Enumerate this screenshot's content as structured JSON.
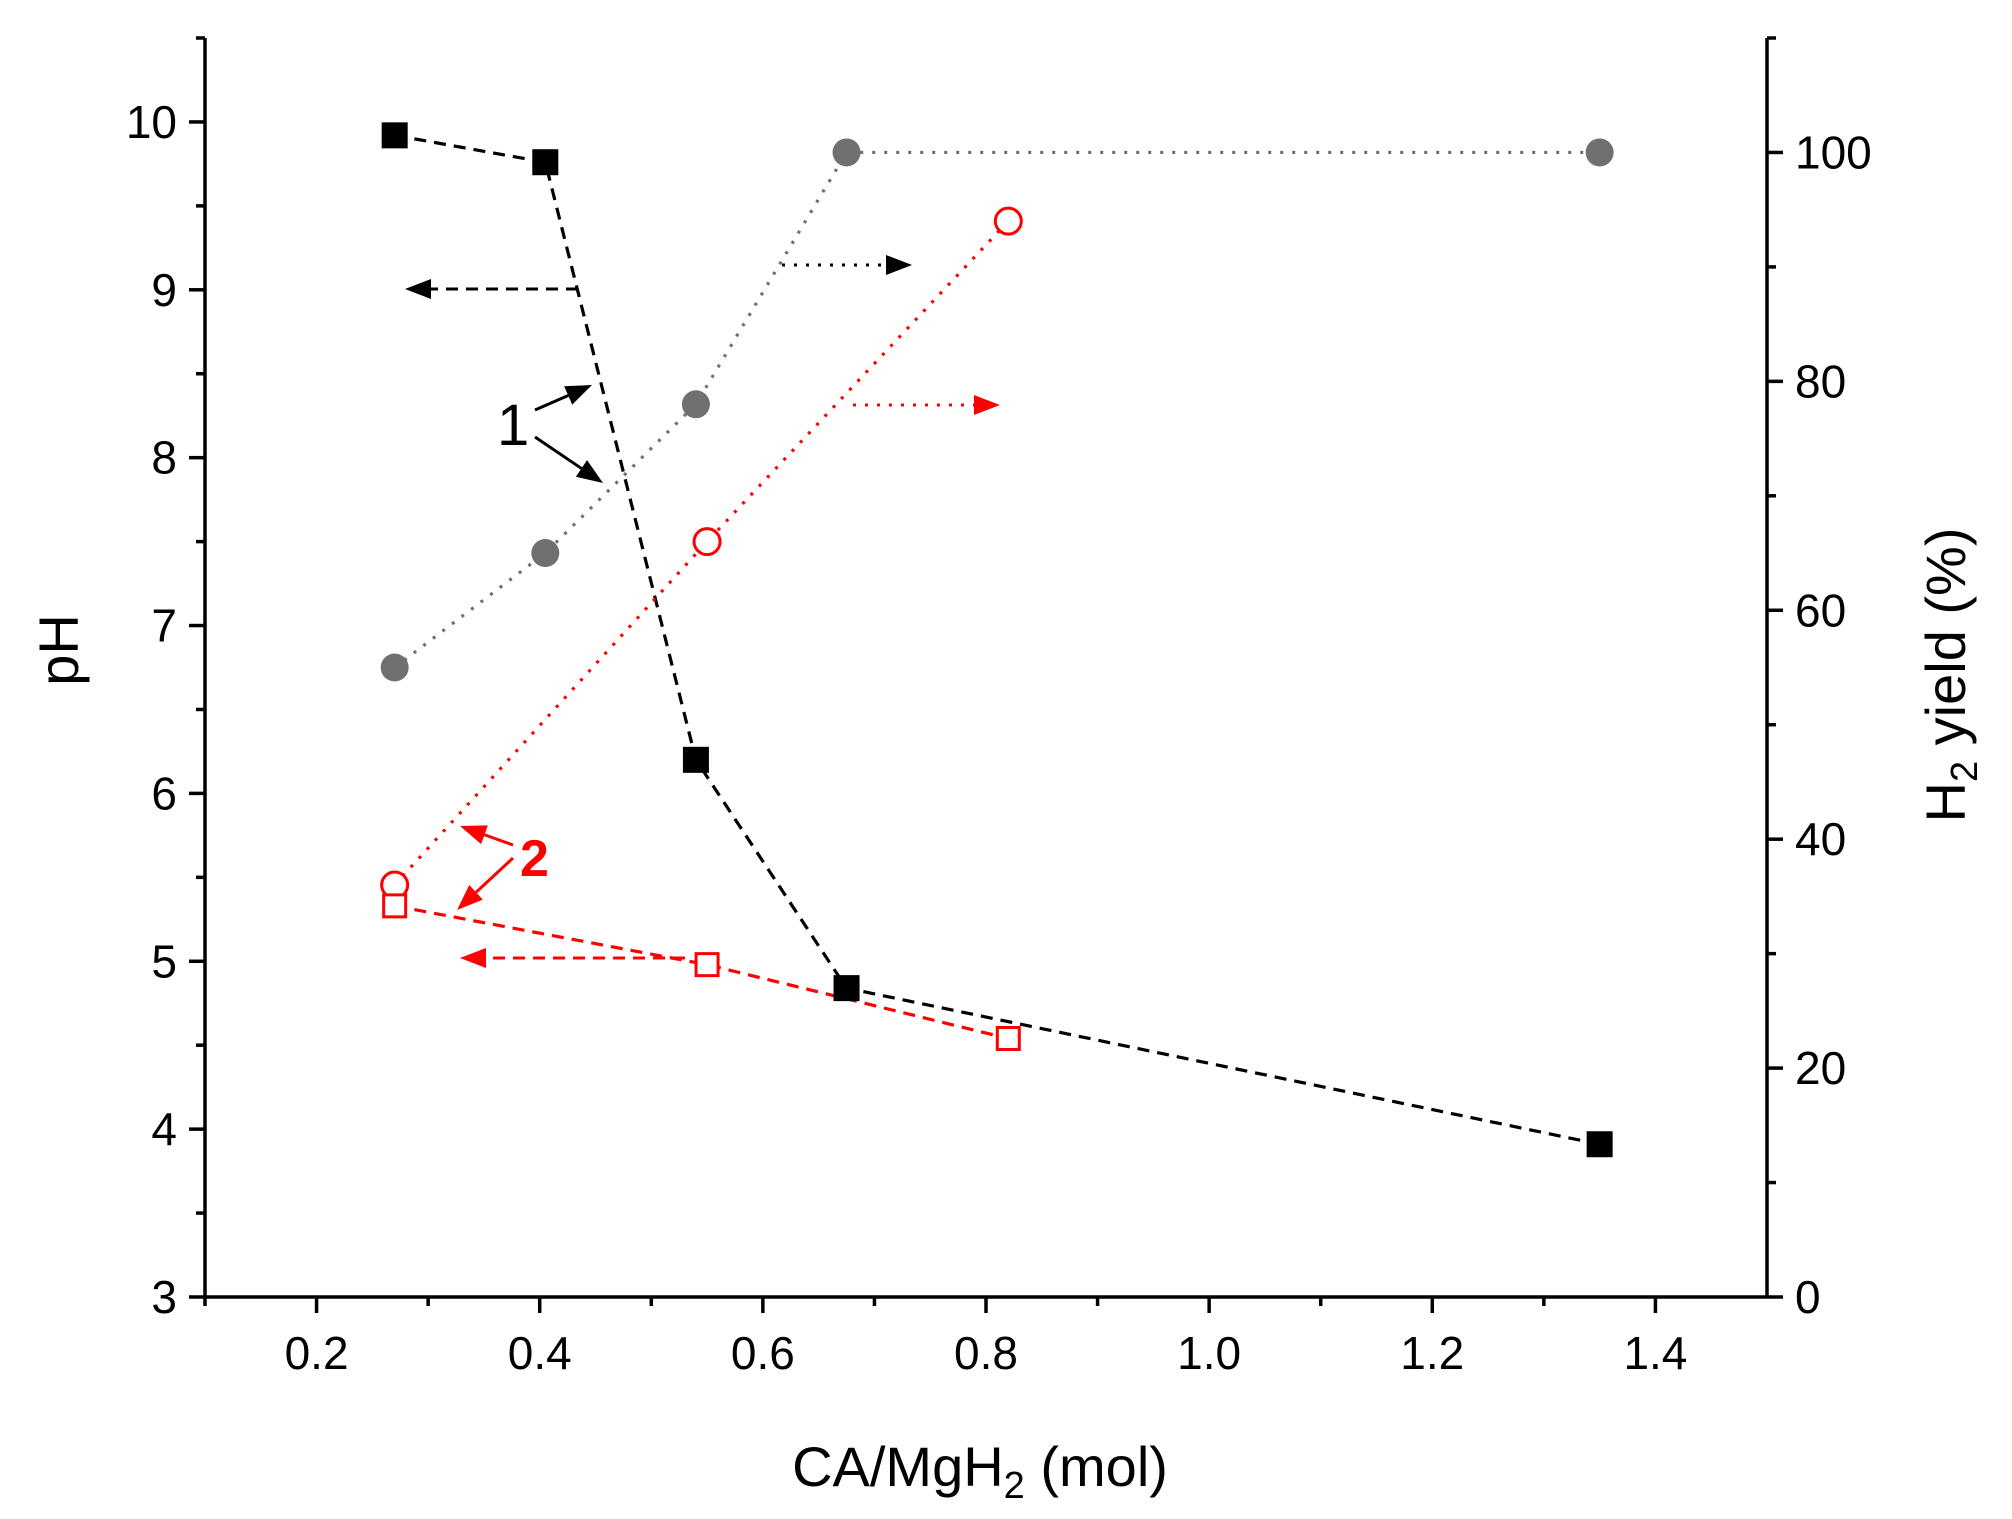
{
  "chart_data": {
    "type": "line",
    "title": "",
    "xlabel_main": "CA/MgH",
    "xlabel_sub": "2",
    "xlabel_tail": " (mol)",
    "ylabel_left": "pH",
    "ylabel_right_main": "H",
    "ylabel_right_sub": "2",
    "ylabel_right_tail": " yield (%)",
    "xlim": [
      0.1,
      1.5
    ],
    "ylim_left": [
      3,
      10.5
    ],
    "ylim_right": [
      0,
      110
    ],
    "x_ticks": [
      "0.2",
      "0.4",
      "0.6",
      "0.8",
      "1.0",
      "1.2",
      "1.4"
    ],
    "y_left_ticks": [
      "3",
      "4",
      "5",
      "6",
      "7",
      "8",
      "9",
      "10"
    ],
    "y_right_ticks": [
      "0",
      "20",
      "40",
      "60",
      "80",
      "100"
    ],
    "series": [
      {
        "name": "pH, series 1",
        "axis": "left",
        "color": "#000000",
        "marker": "filled-square",
        "line": "dashed",
        "x": [
          0.27,
          0.405,
          0.54,
          0.675,
          1.35
        ],
        "y": [
          9.92,
          9.76,
          6.2,
          4.84,
          3.91
        ]
      },
      {
        "name": "H2 yield, series 1",
        "axis": "right",
        "color": "#707070",
        "marker": "filled-circle",
        "line": "dotted",
        "x": [
          0.27,
          0.405,
          0.54,
          0.675,
          1.35
        ],
        "y": [
          55,
          65,
          78,
          100,
          100
        ]
      },
      {
        "name": "H2 yield, series 2",
        "axis": "right",
        "color": "#ff0000",
        "marker": "open-circle",
        "line": "dotted",
        "x": [
          0.27,
          0.55,
          0.82
        ],
        "y": [
          36,
          66,
          94
        ]
      },
      {
        "name": "pH, series 2",
        "axis": "left",
        "color": "#ff0000",
        "marker": "open-square",
        "line": "dashed",
        "x": [
          0.27,
          0.55,
          0.82
        ],
        "y": [
          5.33,
          4.98,
          4.54
        ]
      }
    ],
    "annotations": [
      {
        "label": "1",
        "color": "#000000"
      },
      {
        "label": "2",
        "color": "#ff0000"
      }
    ]
  }
}
